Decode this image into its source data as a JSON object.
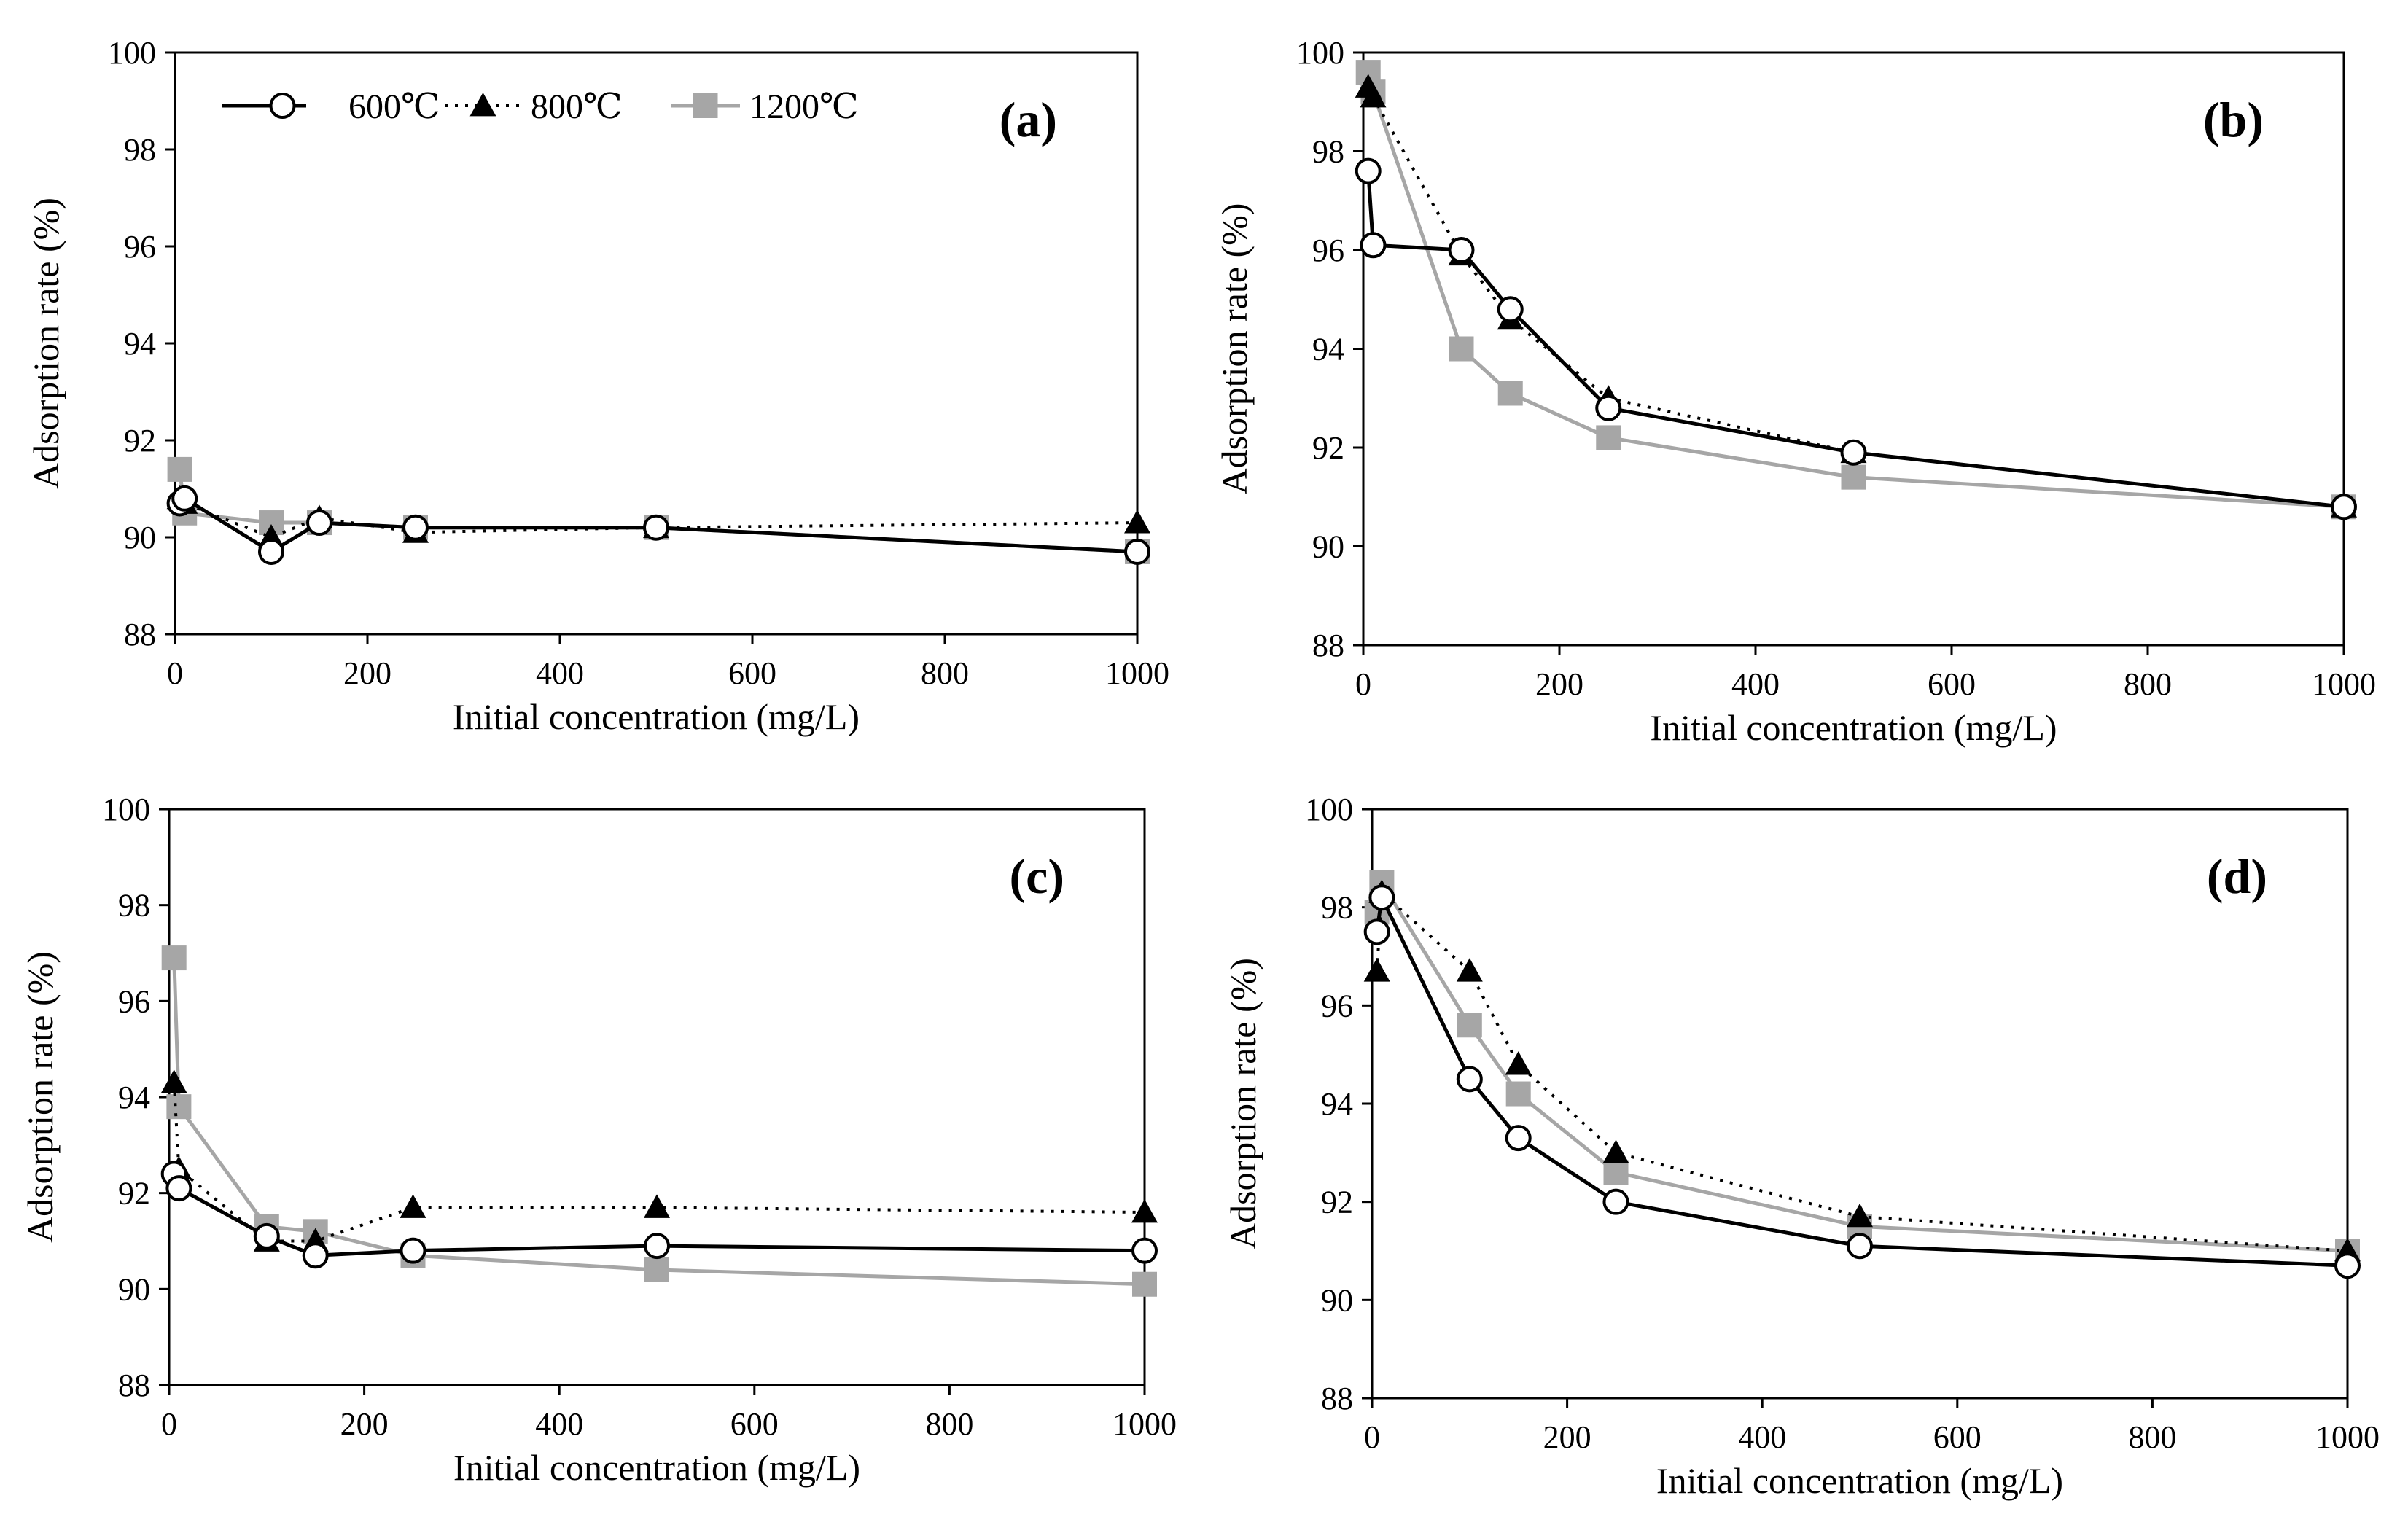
{
  "chart_data": [
    {
      "type": "line",
      "panel_label": "(a)",
      "xlabel": "Initial concentration (mg/L)",
      "ylabel": "Adsorption rate (%)",
      "xlim": [
        0,
        1000
      ],
      "ylim": [
        88,
        100
      ],
      "xticks": [
        0,
        200,
        400,
        600,
        800,
        1000
      ],
      "yticks": [
        88,
        90,
        92,
        94,
        96,
        98,
        100
      ],
      "legend_position": "top-left",
      "series": [
        {
          "name": "600℃",
          "x": [
            5,
            10,
            100,
            150,
            250,
            500,
            1000
          ],
          "y": [
            90.7,
            90.8,
            89.7,
            90.3,
            90.2,
            90.2,
            89.7
          ]
        },
        {
          "name": "800℃",
          "x": [
            5,
            10,
            100,
            150,
            250,
            500,
            1000
          ],
          "y": [
            90.8,
            90.7,
            90.0,
            90.4,
            90.1,
            90.2,
            90.3
          ]
        },
        {
          "name": "1200℃",
          "x": [
            5,
            10,
            100,
            150,
            250,
            500,
            1000
          ],
          "y": [
            91.4,
            90.5,
            90.3,
            90.3,
            90.2,
            90.2,
            89.7
          ]
        }
      ]
    },
    {
      "type": "line",
      "panel_label": "(b)",
      "xlabel": "Initial concentration (mg/L)",
      "ylabel": "Adsorption rate (%)",
      "xlim": [
        0,
        1000
      ],
      "ylim": [
        88,
        100
      ],
      "xticks": [
        0,
        200,
        400,
        600,
        800,
        1000
      ],
      "yticks": [
        88,
        90,
        92,
        94,
        96,
        98,
        100
      ],
      "series": [
        {
          "name": "600℃",
          "x": [
            5,
            10,
            100,
            150,
            250,
            500,
            1000
          ],
          "y": [
            97.6,
            96.1,
            96.0,
            94.8,
            92.8,
            91.9,
            90.8
          ]
        },
        {
          "name": "800℃",
          "x": [
            5,
            10,
            100,
            150,
            250,
            500,
            1000
          ],
          "y": [
            99.3,
            99.1,
            95.9,
            94.6,
            93.0,
            91.9,
            90.8
          ]
        },
        {
          "name": "1200℃",
          "x": [
            5,
            10,
            100,
            150,
            250,
            500,
            1000
          ],
          "y": [
            99.6,
            99.2,
            94.0,
            93.1,
            92.2,
            91.4,
            90.8
          ]
        }
      ]
    },
    {
      "type": "line",
      "panel_label": "(c)",
      "xlabel": "Initial concentration (mg/L)",
      "ylabel": "Adsorption rate (%)",
      "xlim": [
        0,
        1000
      ],
      "ylim": [
        88,
        100
      ],
      "xticks": [
        0,
        200,
        400,
        600,
        800,
        1000
      ],
      "yticks": [
        88,
        90,
        92,
        94,
        96,
        98,
        100
      ],
      "series": [
        {
          "name": "600℃",
          "x": [
            5,
            10,
            100,
            150,
            250,
            500,
            1000
          ],
          "y": [
            92.4,
            92.1,
            91.1,
            90.7,
            90.8,
            90.9,
            90.8
          ]
        },
        {
          "name": "800℃",
          "x": [
            5,
            10,
            100,
            150,
            250,
            500,
            1000
          ],
          "y": [
            94.3,
            92.5,
            91.0,
            91.0,
            91.7,
            91.7,
            91.6
          ]
        },
        {
          "name": "1200℃",
          "x": [
            5,
            10,
            100,
            150,
            250,
            500,
            1000
          ],
          "y": [
            96.9,
            93.8,
            91.3,
            91.2,
            90.7,
            90.4,
            90.1
          ]
        }
      ]
    },
    {
      "type": "line",
      "panel_label": "(d)",
      "xlabel": "Initial concentration (mg/L)",
      "ylabel": "Adsorption rate (%)",
      "xlim": [
        0,
        1000
      ],
      "ylim": [
        88,
        100
      ],
      "xticks": [
        0,
        200,
        400,
        600,
        800,
        1000
      ],
      "yticks": [
        88,
        90,
        92,
        94,
        96,
        98,
        100
      ],
      "series": [
        {
          "name": "600℃",
          "x": [
            5,
            10,
            100,
            150,
            250,
            500,
            1000
          ],
          "y": [
            97.5,
            98.2,
            94.5,
            93.3,
            92.0,
            91.1,
            90.7
          ]
        },
        {
          "name": "800℃",
          "x": [
            5,
            10,
            100,
            150,
            250,
            500,
            1000
          ],
          "y": [
            96.7,
            98.3,
            96.7,
            94.8,
            93.0,
            91.7,
            91.0
          ]
        },
        {
          "name": "1200℃",
          "x": [
            5,
            10,
            100,
            150,
            250,
            500,
            1000
          ],
          "y": [
            97.9,
            98.5,
            95.6,
            94.2,
            92.6,
            91.5,
            91.0
          ]
        }
      ]
    }
  ],
  "legend": {
    "items": [
      "600℃",
      "800℃",
      "1200℃"
    ]
  },
  "colors": {
    "s600": "#000000",
    "s800": "#000000",
    "s1200": "#a6a6a6",
    "marker_fill_600": "#ffffff"
  }
}
